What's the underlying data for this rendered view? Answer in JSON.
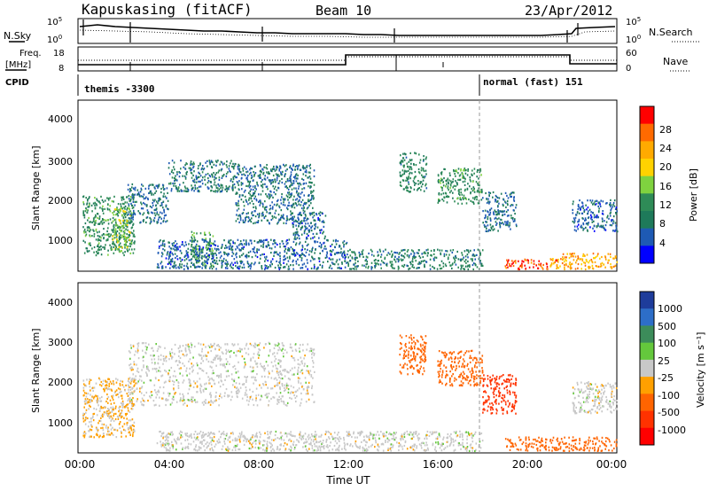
{
  "header": {
    "station": "Kapuskasing (fitACF)",
    "beam": "Beam 10",
    "date": "23/Apr/2012"
  },
  "noise_panel": {
    "left_label": "N.Sky",
    "right_label": "N.Search",
    "left_ticks": [
      "10^5",
      "10^0"
    ],
    "right_ticks": [
      "10^5",
      "10^0"
    ],
    "left_exponents": [
      "5",
      "0"
    ],
    "right_exponents": [
      "5",
      "0"
    ]
  },
  "freq_panel": {
    "left_label_1": "Freq.",
    "left_label_2": "[MHz]",
    "right_label": "Nave",
    "left_ticks": [
      "18",
      "8"
    ],
    "right_ticks": [
      "60",
      "0"
    ]
  },
  "cpid_panel": {
    "label": "CPID",
    "program_1": "themis -3300",
    "program_2": "normal (fast) 151"
  },
  "power_panel": {
    "ylabel": "Slant Range [km]",
    "yticks": [
      "4000",
      "3000",
      "2000",
      "1000"
    ],
    "colorbar_label": "Power [dB]",
    "colorbar_ticks": [
      "28",
      "24",
      "20",
      "16",
      "12",
      "8",
      "4"
    ],
    "colorbar_colors": [
      "#ff0000",
      "#ff6a00",
      "#ffaa00",
      "#ffd200",
      "#7fd23f",
      "#2e8b57",
      "#1e7a5a",
      "#1e5ab4",
      "#0000ff"
    ]
  },
  "velocity_panel": {
    "ylabel": "Slant Range [km]",
    "yticks": [
      "4000",
      "3000",
      "2000",
      "1000"
    ],
    "colorbar_label": "Velocity [m s⁻¹]",
    "colorbar_ticks": [
      "1000",
      "500",
      "100",
      "25",
      "-25",
      "-100",
      "-500",
      "-1000"
    ],
    "colorbar_colors": [
      "#1e3c9b",
      "#2d6ec8",
      "#3c8c5a",
      "#64c83c",
      "#c8c8c8",
      "#ffa000",
      "#ff6400",
      "#ff3200",
      "#ff0000"
    ]
  },
  "xaxis": {
    "label": "Time UT",
    "ticks": [
      "00:00",
      "04:00",
      "08:00",
      "12:00",
      "16:00",
      "20:00",
      "00:00"
    ]
  },
  "chart_data": {
    "type": "heatmap",
    "title": "Kapuskasing (fitACF)",
    "subtitle": "Beam 10",
    "date": "23/Apr/2012",
    "xlabel": "Time UT",
    "ylabel": "Slant Range [km]",
    "xlim_hours": [
      0,
      24
    ],
    "ylim_km": [
      180,
      4500
    ],
    "grid": false,
    "mode_change_hour": 18,
    "power_scale_db": [
      0,
      30
    ],
    "velocity_scale_ms": [
      -1000,
      1000
    ],
    "power_regions": [
      {
        "t0": 0.2,
        "t1": 2.5,
        "r0": 600,
        "r1": 2100,
        "level": 10
      },
      {
        "t0": 1.5,
        "t1": 2.3,
        "r0": 700,
        "r1": 1800,
        "level": 15
      },
      {
        "t0": 2.2,
        "t1": 4.0,
        "r0": 1400,
        "r1": 2400,
        "level": 6
      },
      {
        "t0": 4.0,
        "t1": 7.0,
        "r0": 2200,
        "r1": 3000,
        "level": 7
      },
      {
        "t0": 7.0,
        "t1": 10.5,
        "r0": 1400,
        "r1": 2900,
        "level": 6
      },
      {
        "t0": 9.5,
        "t1": 11.0,
        "r0": 1000,
        "r1": 1700,
        "level": 5
      },
      {
        "t0": 5.0,
        "t1": 6.0,
        "r0": 250,
        "r1": 1200,
        "level": 12
      },
      {
        "t0": 3.5,
        "t1": 12.0,
        "r0": 250,
        "r1": 1000,
        "level": 5
      },
      {
        "t0": 12.0,
        "t1": 18.0,
        "r0": 250,
        "r1": 750,
        "level": 8
      },
      {
        "t0": 14.3,
        "t1": 15.5,
        "r0": 2200,
        "r1": 3200,
        "level": 9
      },
      {
        "t0": 16.0,
        "t1": 18.0,
        "r0": 1900,
        "r1": 2800,
        "level": 10
      },
      {
        "t0": 18.0,
        "t1": 19.5,
        "r0": 1200,
        "r1": 2200,
        "level": 6
      },
      {
        "t0": 19.0,
        "t1": 21.5,
        "r0": 250,
        "r1": 500,
        "level": 27
      },
      {
        "t0": 21.0,
        "t1": 24.0,
        "r0": 250,
        "r1": 650,
        "level": 22
      },
      {
        "t0": 22.0,
        "t1": 24.0,
        "r0": 1200,
        "r1": 2000,
        "level": 5
      }
    ],
    "velocity_regions": [
      {
        "t0": 0.2,
        "t1": 2.5,
        "r0": 600,
        "r1": 2100,
        "level": -30
      },
      {
        "t0": 2.2,
        "t1": 10.5,
        "r0": 1400,
        "r1": 3000,
        "level": 0
      },
      {
        "t0": 3.5,
        "t1": 18.0,
        "r0": 250,
        "r1": 750,
        "level": 0
      },
      {
        "t0": 14.3,
        "t1": 15.5,
        "r0": 2200,
        "r1": 3200,
        "level": -150
      },
      {
        "t0": 16.0,
        "t1": 18.0,
        "r0": 1900,
        "r1": 2800,
        "level": -150
      },
      {
        "t0": 18.0,
        "t1": 19.5,
        "r0": 1200,
        "r1": 2200,
        "level": -600
      },
      {
        "t0": 19.0,
        "t1": 24.0,
        "r0": 250,
        "r1": 600,
        "level": -200
      },
      {
        "t0": 22.0,
        "t1": 24.0,
        "r0": 1200,
        "r1": 2000,
        "level": 0
      }
    ]
  }
}
